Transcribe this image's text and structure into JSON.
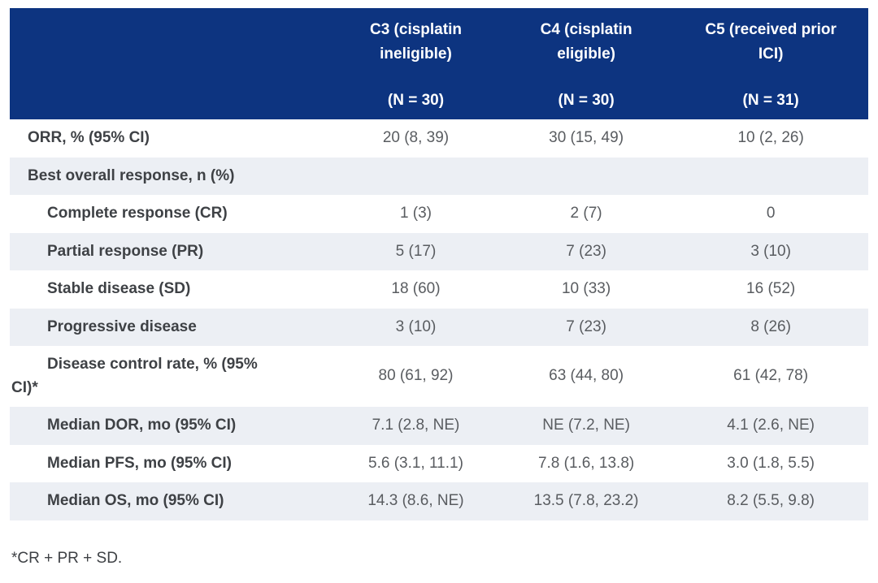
{
  "table": {
    "columns": [
      {
        "title": "C3 (cisplatin\nineligible)",
        "n": "(N = 30)"
      },
      {
        "title": "C4 (cisplatin\neligible)",
        "n": "(N = 30)"
      },
      {
        "title": "C5 (received prior\nICI)",
        "n": "(N = 31)"
      }
    ],
    "rows": [
      {
        "label": "ORR, % (95% CI)",
        "values": [
          "20 (8, 39)",
          "30 (15, 49)",
          "10 (2, 26)"
        ]
      },
      {
        "label": "Best overall response, n (%)",
        "values": [
          "",
          "",
          ""
        ]
      },
      {
        "label": "Complete response (CR)",
        "values": [
          "1 (3)",
          "2 (7)",
          "0"
        ]
      },
      {
        "label": "Partial response (PR)",
        "values": [
          "5 (17)",
          "7 (23)",
          "3 (10)"
        ]
      },
      {
        "label": "Stable disease (SD)",
        "values": [
          "18 (60)",
          "10 (33)",
          "16 (52)"
        ]
      },
      {
        "label": "Progressive disease",
        "values": [
          "3 (10)",
          "7 (23)",
          "8 (26)"
        ]
      },
      {
        "label": "Disease control rate, % (95%\nCI)*",
        "values": [
          "80 (61, 92)",
          "63 (44, 80)",
          "61 (42, 78)"
        ]
      },
      {
        "label": "Median DOR, mo (95% CI)",
        "values": [
          "7.1 (2.8, NE)",
          "NE (7.2, NE)",
          "4.1 (2.6, NE)"
        ]
      },
      {
        "label": "Median PFS, mo (95% CI)",
        "values": [
          "5.6 (3.1, 11.1)",
          "7.8 (1.6, 13.8)",
          "3.0 (1.8, 5.5)"
        ]
      },
      {
        "label": "Median OS, mo (95% CI)",
        "values": [
          "14.3 (8.6, NE)",
          "13.5 (7.8, 23.2)",
          "8.2 (5.5, 9.8)"
        ]
      }
    ]
  },
  "footnote": "*CR + PR + SD.",
  "colors": {
    "header_bg": "#0D3480",
    "header_text": "#FFFFFF",
    "stripe_bg": "#ECEFF4",
    "label_text": "#3E4145",
    "value_text": "#595C60"
  }
}
